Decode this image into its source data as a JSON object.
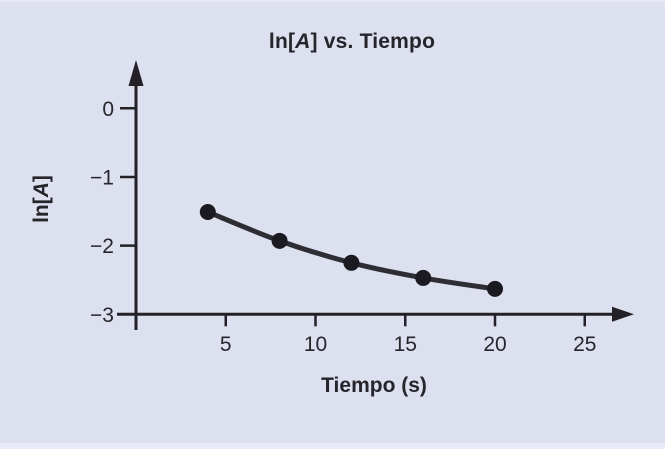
{
  "chart_data": {
    "type": "line",
    "title": "ln[A] vs. Tiempo",
    "title_parts": {
      "prefix": "ln[",
      "variable": "A",
      "suffix": "] vs. Tiempo"
    },
    "xlabel": "Tiempo (s)",
    "ylabel": "ln[A]",
    "ylabel_parts": {
      "prefix": "ln[",
      "variable": "A",
      "suffix": "]"
    },
    "x": [
      4,
      8,
      12,
      16,
      20
    ],
    "y": [
      -1.51,
      -1.93,
      -2.25,
      -2.47,
      -2.63
    ],
    "x_ticks": [
      5,
      10,
      15,
      20,
      25
    ],
    "x_tick_labels": [
      "5",
      "10",
      "15",
      "20",
      "25"
    ],
    "y_ticks": [
      0,
      -1,
      -2,
      -3
    ],
    "y_tick_labels": [
      "0",
      "−1",
      "−2",
      "−3"
    ],
    "xlim": [
      0,
      27
    ],
    "ylim": [
      -3,
      0.6
    ],
    "grid": false,
    "legend": "none",
    "marker": "filled-circle",
    "curve_style": "smooth",
    "colors": {
      "background": "#dce0ef",
      "axis": "#232127",
      "text": "#26252b",
      "line": "#2e2d33",
      "marker": "#1b1a20"
    }
  }
}
